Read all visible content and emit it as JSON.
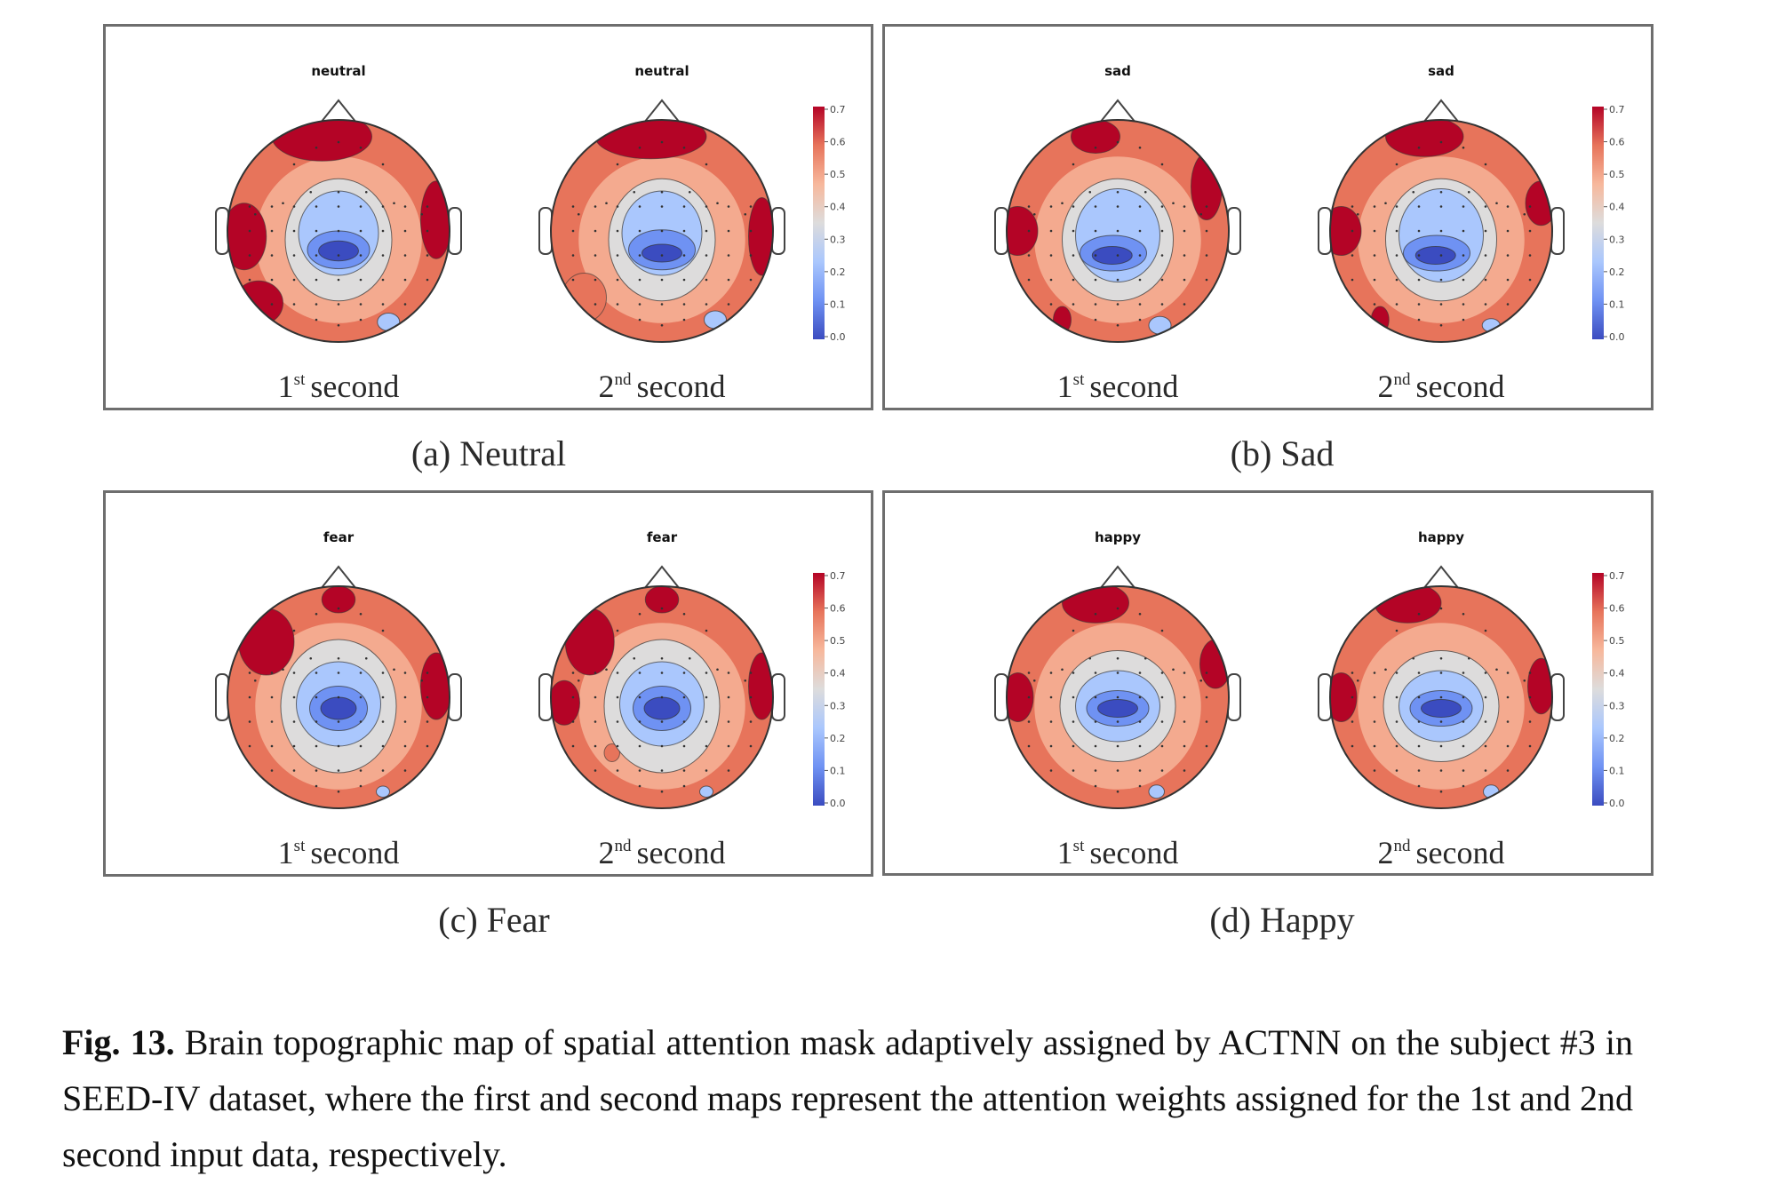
{
  "figure": {
    "colorbar": {
      "min": 0.0,
      "max": 0.7,
      "ticks": [
        "0.0",
        "0.1",
        "0.2",
        "0.3",
        "0.4",
        "0.5",
        "0.6",
        "0.7"
      ],
      "colormap": [
        "#3b4cc0",
        "#6f92f3",
        "#aac7fd",
        "#dddcdc",
        "#f7b89c",
        "#e7745b",
        "#b40426"
      ]
    },
    "panels": [
      {
        "id": "a",
        "caption": "(a) Neutral",
        "maps": [
          {
            "title": "neutral",
            "label_num": "1",
            "label_sup": "st",
            "label_word": "second"
          },
          {
            "title": "neutral",
            "label_num": "2",
            "label_sup": "nd",
            "label_word": "second"
          }
        ]
      },
      {
        "id": "b",
        "caption": "(b) Sad",
        "maps": [
          {
            "title": "sad",
            "label_num": "1",
            "label_sup": "st",
            "label_word": "second"
          },
          {
            "title": "sad",
            "label_num": "2",
            "label_sup": "nd",
            "label_word": "second"
          }
        ]
      },
      {
        "id": "c",
        "caption": "(c) Fear",
        "maps": [
          {
            "title": "fear",
            "label_num": "1",
            "label_sup": "st",
            "label_word": "second"
          },
          {
            "title": "fear",
            "label_num": "2",
            "label_sup": "nd",
            "label_word": "second"
          }
        ]
      },
      {
        "id": "d",
        "caption": "(d) Happy",
        "maps": [
          {
            "title": "happy",
            "label_num": "1",
            "label_sup": "st",
            "label_word": "second"
          },
          {
            "title": "happy",
            "label_num": "2",
            "label_sup": "nd",
            "label_word": "second"
          }
        ]
      }
    ],
    "caption": {
      "label": "Fig. 13.",
      "text": "Brain topographic map of spatial attention mask adaptively assigned by ACTNN on the subject #3 in SEED-IV dataset, where the first and second maps represent the attention weights assigned for the 1st and 2nd second input data, respectively."
    }
  }
}
